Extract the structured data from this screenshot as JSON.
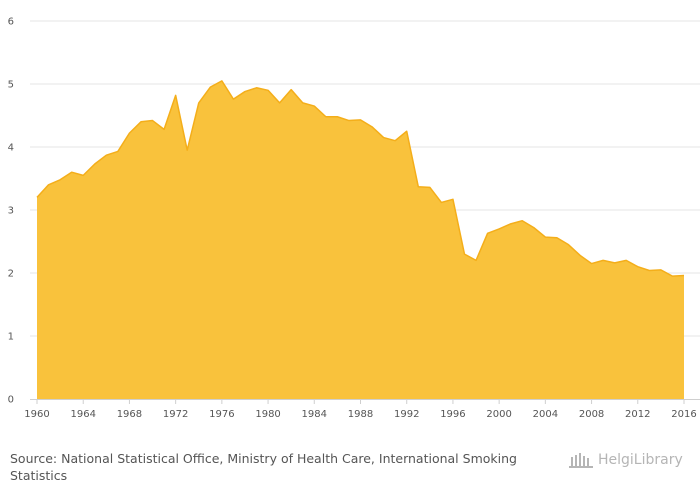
{
  "chart_data": {
    "type": "area",
    "title": "",
    "xlabel": "",
    "ylabel": "",
    "ylim": [
      0,
      6
    ],
    "xlim": [
      1960,
      2016
    ],
    "y_ticks": [
      0,
      1,
      2,
      3,
      4,
      5,
      6
    ],
    "x_ticks": [
      1960,
      1964,
      1968,
      1972,
      1976,
      1980,
      1984,
      1988,
      1992,
      1996,
      2000,
      2004,
      2008,
      2012,
      2016
    ],
    "grid": true,
    "legend": "none",
    "fill_color": "#f9c23c",
    "line_color": "#f4ae1a",
    "series": [
      {
        "x": [
          1960,
          1961,
          1962,
          1963,
          1964,
          1965,
          1966,
          1967,
          1968,
          1969,
          1970,
          1971,
          1972,
          1973,
          1974,
          1975,
          1976,
          1977,
          1978,
          1979,
          1980,
          1981,
          1982,
          1983,
          1984,
          1985,
          1986,
          1987,
          1988,
          1989,
          1990,
          1991,
          1992,
          1993,
          1994,
          1995,
          1996,
          1997,
          1998,
          1999,
          2000,
          2001,
          2002,
          2003,
          2004,
          2005,
          2006,
          2007,
          2008,
          2009,
          2010,
          2011,
          2012,
          2013,
          2014,
          2015,
          2016
        ],
        "values": [
          3.2,
          3.4,
          3.48,
          3.6,
          3.55,
          3.73,
          3.87,
          3.93,
          4.22,
          4.4,
          4.42,
          4.28,
          4.82,
          3.95,
          4.7,
          4.95,
          5.05,
          4.76,
          4.88,
          4.94,
          4.9,
          4.7,
          4.91,
          4.7,
          4.65,
          4.48,
          4.48,
          4.42,
          4.43,
          4.32,
          4.15,
          4.1,
          4.25,
          3.37,
          3.36,
          3.12,
          3.17,
          2.3,
          2.2,
          2.63,
          2.7,
          2.78,
          2.83,
          2.72,
          2.57,
          2.56,
          2.45,
          2.28,
          2.15,
          2.2,
          2.16,
          2.2,
          2.1,
          2.04,
          2.05,
          1.95,
          1.96
        ]
      }
    ]
  },
  "footer": {
    "source_prefix": "Source:",
    "source_text": "National Statistical Office, Ministry of Health Care, International Smoking Statistics"
  },
  "brand": {
    "name": "HelgiLibrary",
    "icon": "library-building-icon"
  }
}
